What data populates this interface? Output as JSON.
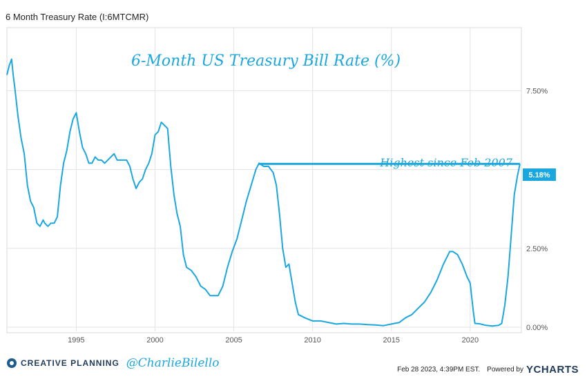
{
  "window": {
    "title": "6 Month Treasury Rate (I:6MTCMR)"
  },
  "chart_data": {
    "type": "line",
    "title": "6-Month US Treasury Bill Rate (%)",
    "annotation": "Highest since Feb 2007",
    "last_value_label": "5.18%",
    "last_value": 5.18,
    "reference_line": {
      "value": 5.18,
      "from_x": 2006.6,
      "to_x": 2023.16
    },
    "xlim": [
      1990.6,
      2023.25
    ],
    "ylim": [
      0,
      9.5
    ],
    "x_ticks": [
      {
        "value": 1995,
        "label": "1995"
      },
      {
        "value": 2000,
        "label": "2000"
      },
      {
        "value": 2005,
        "label": "2005"
      },
      {
        "value": 2010,
        "label": "2010"
      },
      {
        "value": 2015,
        "label": "2015"
      },
      {
        "value": 2020,
        "label": "2020"
      }
    ],
    "y_ticks": [
      {
        "value": 0,
        "label": "0.00%"
      },
      {
        "value": 2.5,
        "label": "2.50%"
      },
      {
        "value": 5,
        "label": ""
      },
      {
        "value": 7.5,
        "label": "7.50%"
      }
    ],
    "series": [
      {
        "color": "#1aa7e0",
        "x": [
          1990.6,
          1990.75,
          1990.9,
          1991.0,
          1991.1,
          1991.3,
          1991.5,
          1991.7,
          1991.9,
          1992.1,
          1992.3,
          1992.5,
          1992.7,
          1992.9,
          1993.0,
          1993.2,
          1993.4,
          1993.6,
          1993.8,
          1994.0,
          1994.2,
          1994.4,
          1994.6,
          1994.8,
          1995.0,
          1995.2,
          1995.4,
          1995.6,
          1995.8,
          1996.0,
          1996.2,
          1996.4,
          1996.6,
          1996.8,
          1997.0,
          1997.2,
          1997.4,
          1997.6,
          1997.8,
          1998.0,
          1998.2,
          1998.4,
          1998.6,
          1998.8,
          1999.0,
          1999.2,
          1999.4,
          1999.6,
          1999.8,
          2000.0,
          2000.2,
          2000.4,
          2000.6,
          2000.8,
          2001.0,
          2001.2,
          2001.4,
          2001.6,
          2001.8,
          2002.0,
          2002.3,
          2002.6,
          2002.9,
          2003.2,
          2003.5,
          2003.8,
          2004.0,
          2004.3,
          2004.6,
          2004.9,
          2005.2,
          2005.5,
          2005.8,
          2006.1,
          2006.4,
          2006.6,
          2006.9,
          2007.2,
          2007.5,
          2007.7,
          2007.9,
          2008.1,
          2008.3,
          2008.5,
          2008.7,
          2008.9,
          2009.1,
          2009.5,
          2010.0,
          2010.5,
          2011.0,
          2011.5,
          2012.0,
          2012.5,
          2013.0,
          2013.5,
          2014.0,
          2014.5,
          2015.0,
          2015.5,
          2015.9,
          2016.3,
          2016.7,
          2017.1,
          2017.5,
          2017.9,
          2018.3,
          2018.7,
          2018.9,
          2019.2,
          2019.5,
          2019.8,
          2020.0,
          2020.2,
          2020.3,
          2020.6,
          2021.0,
          2021.4,
          2021.8,
          2022.0,
          2022.2,
          2022.4,
          2022.6,
          2022.8,
          2023.0,
          2023.16
        ],
        "y": [
          8.0,
          8.3,
          8.5,
          8.0,
          7.6,
          6.7,
          6.0,
          5.5,
          4.5,
          4.0,
          3.8,
          3.3,
          3.2,
          3.4,
          3.3,
          3.2,
          3.3,
          3.3,
          3.5,
          4.5,
          5.2,
          5.6,
          6.2,
          6.6,
          6.8,
          6.2,
          5.7,
          5.5,
          5.2,
          5.2,
          5.4,
          5.3,
          5.3,
          5.2,
          5.3,
          5.4,
          5.5,
          5.3,
          5.3,
          5.3,
          5.3,
          5.1,
          4.7,
          4.4,
          4.6,
          4.7,
          5.0,
          5.2,
          5.5,
          6.1,
          6.2,
          6.5,
          6.4,
          6.3,
          5.1,
          4.2,
          3.6,
          3.2,
          2.3,
          1.9,
          1.8,
          1.6,
          1.3,
          1.2,
          1.0,
          1.0,
          1.0,
          1.3,
          1.9,
          2.4,
          2.8,
          3.4,
          4.0,
          4.5,
          5.0,
          5.2,
          5.1,
          5.1,
          4.9,
          4.5,
          3.6,
          2.5,
          1.9,
          2.0,
          1.4,
          0.8,
          0.4,
          0.3,
          0.2,
          0.2,
          0.15,
          0.1,
          0.12,
          0.1,
          0.1,
          0.08,
          0.07,
          0.05,
          0.1,
          0.15,
          0.3,
          0.4,
          0.6,
          0.8,
          1.1,
          1.5,
          2.0,
          2.4,
          2.4,
          2.3,
          2.0,
          1.6,
          1.4,
          0.5,
          0.12,
          0.11,
          0.06,
          0.04,
          0.06,
          0.12,
          0.7,
          1.6,
          2.9,
          4.2,
          4.8,
          5.18
        ]
      }
    ],
    "grid": true
  },
  "footer": {
    "brand": "CREATIVE PLANNING",
    "handle": "@CharlieBilello",
    "timestamp": "Feb 28 2023, 4:39PM EST.",
    "powered_by": "Powered by",
    "logo_text": "YCHARTS"
  }
}
